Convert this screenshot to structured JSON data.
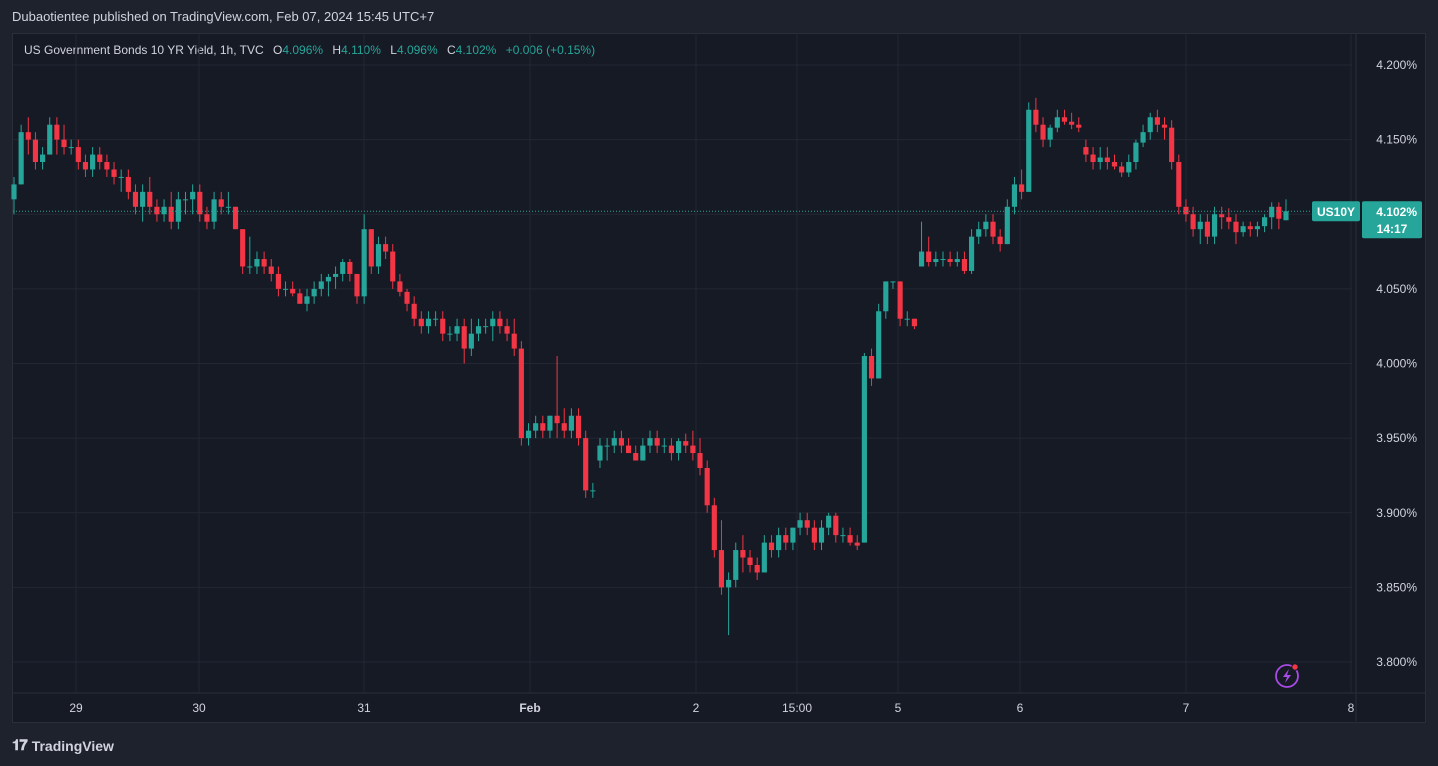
{
  "publisher_line": "Dubaotientee published on TradingView.com, Feb 07, 2024 15:45 UTC+7",
  "legend": {
    "symbol_line": "US Government Bonds 10 YR Yield, 1h, TVC",
    "o_label": "O",
    "o": "4.096%",
    "h_label": "H",
    "h": "4.110%",
    "l_label": "L",
    "l": "4.096%",
    "c_label": "C",
    "c": "4.102%",
    "change": "+0.006 (+0.15%)"
  },
  "price_badge": {
    "ticker": "US10Y",
    "price": "4.102%",
    "countdown": "14:17"
  },
  "footer": {
    "brand": "TradingView",
    "logo_icon": "tradingview-logo-icon"
  },
  "colors": {
    "up": "#26a69a",
    "down": "#f23645",
    "grid": "#232733",
    "text": "#d1d4dc",
    "accent": "#a94be6"
  },
  "chart_data": {
    "type": "candlestick",
    "ylim": [
      3.775,
      4.21
    ],
    "y_ticks": [
      4.2,
      4.15,
      4.1,
      4.05,
      4.0,
      3.95,
      3.9,
      3.85,
      3.8
    ],
    "y_tick_labels": [
      "4.200%",
      "4.150%",
      "4.100%",
      "4.050%",
      "4.000%",
      "3.950%",
      "3.900%",
      "3.850%",
      "3.800%"
    ],
    "x_tick_labels": [
      "29",
      "30",
      "31",
      "Feb",
      "2",
      "15:00",
      "5",
      "6",
      "7",
      "8"
    ],
    "current_price": 4.102,
    "ohlc": [
      [
        4.11,
        4.125,
        4.1,
        4.12
      ],
      [
        4.12,
        4.16,
        4.12,
        4.155
      ],
      [
        4.155,
        4.165,
        4.14,
        4.15
      ],
      [
        4.15,
        4.155,
        4.13,
        4.135
      ],
      [
        4.135,
        4.145,
        4.13,
        4.14
      ],
      [
        4.14,
        4.165,
        4.14,
        4.16
      ],
      [
        4.16,
        4.165,
        4.14,
        4.15
      ],
      [
        4.15,
        4.16,
        4.14,
        4.145
      ],
      [
        4.145,
        4.15,
        4.14,
        4.145
      ],
      [
        4.145,
        4.15,
        4.13,
        4.135
      ],
      [
        4.135,
        4.14,
        4.125,
        4.13
      ],
      [
        4.13,
        4.145,
        4.125,
        4.14
      ],
      [
        4.14,
        4.145,
        4.13,
        4.135
      ],
      [
        4.135,
        4.14,
        4.125,
        4.13
      ],
      [
        4.13,
        4.135,
        4.12,
        4.125
      ],
      [
        4.125,
        4.13,
        4.115,
        4.125
      ],
      [
        4.125,
        4.13,
        4.11,
        4.115
      ],
      [
        4.115,
        4.12,
        4.1,
        4.105
      ],
      [
        4.105,
        4.12,
        4.095,
        4.115
      ],
      [
        4.115,
        4.125,
        4.1,
        4.105
      ],
      [
        4.105,
        4.11,
        4.095,
        4.1
      ],
      [
        4.1,
        4.11,
        4.095,
        4.105
      ],
      [
        4.105,
        4.115,
        4.09,
        4.095
      ],
      [
        4.095,
        4.115,
        4.09,
        4.11
      ],
      [
        4.11,
        4.115,
        4.1,
        4.11
      ],
      [
        4.11,
        4.12,
        4.1,
        4.115
      ],
      [
        4.115,
        4.12,
        4.095,
        4.1
      ],
      [
        4.1,
        4.105,
        4.09,
        4.095
      ],
      [
        4.095,
        4.115,
        4.09,
        4.11
      ],
      [
        4.11,
        4.115,
        4.1,
        4.105
      ],
      [
        4.105,
        4.115,
        4.1,
        4.105
      ],
      [
        4.105,
        4.105,
        4.09,
        4.09
      ],
      [
        4.09,
        4.09,
        4.06,
        4.065
      ],
      [
        4.065,
        4.085,
        4.06,
        4.065
      ],
      [
        4.065,
        4.075,
        4.06,
        4.07
      ],
      [
        4.07,
        4.075,
        4.06,
        4.065
      ],
      [
        4.065,
        4.07,
        4.055,
        4.06
      ],
      [
        4.06,
        4.065,
        4.045,
        4.05
      ],
      [
        4.05,
        4.055,
        4.045,
        4.05
      ],
      [
        4.05,
        4.055,
        4.045,
        4.047
      ],
      [
        4.047,
        4.05,
        4.04,
        4.04
      ],
      [
        4.04,
        4.05,
        4.035,
        4.045
      ],
      [
        4.045,
        4.055,
        4.04,
        4.05
      ],
      [
        4.05,
        4.06,
        4.045,
        4.055
      ],
      [
        4.055,
        4.06,
        4.045,
        4.058
      ],
      [
        4.058,
        4.065,
        4.05,
        4.06
      ],
      [
        4.06,
        4.07,
        4.055,
        4.068
      ],
      [
        4.068,
        4.07,
        4.055,
        4.06
      ],
      [
        4.06,
        4.06,
        4.04,
        4.045
      ],
      [
        4.045,
        4.1,
        4.04,
        4.09
      ],
      [
        4.09,
        4.09,
        4.06,
        4.065
      ],
      [
        4.065,
        4.085,
        4.06,
        4.08
      ],
      [
        4.08,
        4.085,
        4.07,
        4.075
      ],
      [
        4.075,
        4.08,
        4.05,
        4.055
      ],
      [
        4.055,
        4.06,
        4.045,
        4.048
      ],
      [
        4.048,
        4.05,
        4.035,
        4.04
      ],
      [
        4.04,
        4.045,
        4.025,
        4.03
      ],
      [
        4.03,
        4.035,
        4.02,
        4.025
      ],
      [
        4.025,
        4.035,
        4.02,
        4.03
      ],
      [
        4.03,
        4.035,
        4.025,
        4.03
      ],
      [
        4.03,
        4.035,
        4.015,
        4.02
      ],
      [
        4.02,
        4.025,
        4.015,
        4.02
      ],
      [
        4.02,
        4.03,
        4.015,
        4.025
      ],
      [
        4.025,
        4.03,
        4.0,
        4.01
      ],
      [
        4.01,
        4.03,
        4.005,
        4.02
      ],
      [
        4.02,
        4.03,
        4.015,
        4.025
      ],
      [
        4.025,
        4.03,
        4.02,
        4.025
      ],
      [
        4.025,
        4.035,
        4.015,
        4.03
      ],
      [
        4.03,
        4.035,
        4.02,
        4.025
      ],
      [
        4.025,
        4.03,
        4.015,
        4.02
      ],
      [
        4.02,
        4.03,
        4.005,
        4.01
      ],
      [
        4.01,
        4.015,
        3.945,
        3.95
      ],
      [
        3.95,
        3.96,
        3.945,
        3.955
      ],
      [
        3.955,
        3.965,
        3.95,
        3.96
      ],
      [
        3.96,
        3.965,
        3.95,
        3.955
      ],
      [
        3.955,
        3.965,
        3.95,
        3.965
      ],
      [
        3.965,
        4.005,
        3.95,
        3.96
      ],
      [
        3.96,
        3.97,
        3.95,
        3.955
      ],
      [
        3.955,
        3.97,
        3.95,
        3.965
      ],
      [
        3.965,
        3.97,
        3.945,
        3.95
      ],
      [
        3.95,
        3.955,
        3.91,
        3.915
      ],
      [
        3.915,
        3.92,
        3.91,
        3.915
      ],
      [
        3.935,
        3.95,
        3.93,
        3.945
      ],
      [
        3.945,
        3.95,
        3.935,
        3.945
      ],
      [
        3.945,
        3.955,
        3.94,
        3.95
      ],
      [
        3.95,
        3.955,
        3.94,
        3.945
      ],
      [
        3.945,
        3.95,
        3.94,
        3.94
      ],
      [
        3.94,
        3.945,
        3.935,
        3.935
      ],
      [
        3.935,
        3.95,
        3.935,
        3.945
      ],
      [
        3.945,
        3.955,
        3.94,
        3.95
      ],
      [
        3.95,
        3.955,
        3.94,
        3.945
      ],
      [
        3.945,
        3.95,
        3.94,
        3.945
      ],
      [
        3.945,
        3.95,
        3.935,
        3.94
      ],
      [
        3.94,
        3.95,
        3.935,
        3.948
      ],
      [
        3.948,
        3.953,
        3.94,
        3.945
      ],
      [
        3.945,
        3.955,
        3.935,
        3.94
      ],
      [
        3.94,
        3.95,
        3.925,
        3.93
      ],
      [
        3.93,
        3.935,
        3.9,
        3.905
      ],
      [
        3.905,
        3.91,
        3.87,
        3.875
      ],
      [
        3.875,
        3.895,
        3.845,
        3.85
      ],
      [
        3.85,
        3.86,
        3.818,
        3.855
      ],
      [
        3.855,
        3.88,
        3.85,
        3.875
      ],
      [
        3.875,
        3.885,
        3.86,
        3.87
      ],
      [
        3.87,
        3.875,
        3.86,
        3.865
      ],
      [
        3.865,
        3.87,
        3.855,
        3.86
      ],
      [
        3.86,
        3.885,
        3.86,
        3.88
      ],
      [
        3.88,
        3.885,
        3.87,
        3.875
      ],
      [
        3.875,
        3.89,
        3.87,
        3.885
      ],
      [
        3.885,
        3.89,
        3.875,
        3.88
      ],
      [
        3.88,
        3.89,
        3.875,
        3.89
      ],
      [
        3.89,
        3.9,
        3.885,
        3.895
      ],
      [
        3.895,
        3.9,
        3.885,
        3.89
      ],
      [
        3.89,
        3.895,
        3.875,
        3.88
      ],
      [
        3.88,
        3.895,
        3.875,
        3.89
      ],
      [
        3.89,
        3.9,
        3.885,
        3.898
      ],
      [
        3.898,
        3.9,
        3.88,
        3.885
      ],
      [
        3.885,
        3.89,
        3.88,
        3.885
      ],
      [
        3.885,
        3.89,
        3.878,
        3.88
      ],
      [
        3.88,
        3.885,
        3.875,
        3.878
      ],
      [
        3.88,
        4.007,
        3.88,
        4.005
      ],
      [
        4.005,
        4.01,
        3.985,
        3.99
      ],
      [
        3.99,
        4.04,
        3.99,
        4.035
      ],
      [
        4.035,
        4.055,
        4.03,
        4.055
      ],
      [
        4.055,
        4.055,
        4.05,
        4.055
      ],
      [
        4.055,
        4.055,
        4.025,
        4.03
      ],
      [
        4.03,
        4.035,
        4.025,
        4.03
      ],
      [
        4.03,
        4.03,
        4.023,
        4.025
      ],
      [
        4.065,
        4.095,
        4.065,
        4.075
      ],
      [
        4.075,
        4.085,
        4.065,
        4.068
      ],
      [
        4.068,
        4.075,
        4.065,
        4.07
      ],
      [
        4.07,
        4.075,
        4.065,
        4.07
      ],
      [
        4.07,
        4.075,
        4.065,
        4.068
      ],
      [
        4.068,
        4.075,
        4.065,
        4.07
      ],
      [
        4.07,
        4.075,
        4.06,
        4.062
      ],
      [
        4.062,
        4.09,
        4.06,
        4.085
      ],
      [
        4.085,
        4.095,
        4.08,
        4.09
      ],
      [
        4.09,
        4.1,
        4.085,
        4.095
      ],
      [
        4.095,
        4.1,
        4.08,
        4.085
      ],
      [
        4.085,
        4.09,
        4.075,
        4.08
      ],
      [
        4.08,
        4.11,
        4.08,
        4.105
      ],
      [
        4.105,
        4.125,
        4.1,
        4.12
      ],
      [
        4.12,
        4.13,
        4.11,
        4.115
      ],
      [
        4.115,
        4.175,
        4.115,
        4.17
      ],
      [
        4.17,
        4.178,
        4.155,
        4.16
      ],
      [
        4.16,
        4.165,
        4.145,
        4.15
      ],
      [
        4.15,
        4.16,
        4.145,
        4.158
      ],
      [
        4.158,
        4.17,
        4.155,
        4.165
      ],
      [
        4.165,
        4.17,
        4.16,
        4.162
      ],
      [
        4.162,
        4.168,
        4.157,
        4.16
      ],
      [
        4.16,
        4.165,
        4.155,
        4.158
      ],
      [
        4.145,
        4.15,
        4.135,
        4.14
      ],
      [
        4.14,
        4.145,
        4.13,
        4.135
      ],
      [
        4.135,
        4.145,
        4.13,
        4.138
      ],
      [
        4.138,
        4.145,
        4.13,
        4.135
      ],
      [
        4.135,
        4.14,
        4.13,
        4.132
      ],
      [
        4.132,
        4.135,
        4.125,
        4.128
      ],
      [
        4.128,
        4.14,
        4.125,
        4.135
      ],
      [
        4.135,
        4.15,
        4.13,
        4.148
      ],
      [
        4.148,
        4.16,
        4.145,
        4.155
      ],
      [
        4.155,
        4.168,
        4.15,
        4.165
      ],
      [
        4.165,
        4.17,
        4.155,
        4.16
      ],
      [
        4.16,
        4.165,
        4.15,
        4.158
      ],
      [
        4.158,
        4.163,
        4.13,
        4.135
      ],
      [
        4.135,
        4.14,
        4.1,
        4.105
      ],
      [
        4.105,
        4.11,
        4.095,
        4.1
      ],
      [
        4.1,
        4.105,
        4.085,
        4.09
      ],
      [
        4.09,
        4.1,
        4.08,
        4.095
      ],
      [
        4.095,
        4.1,
        4.08,
        4.085
      ],
      [
        4.085,
        4.105,
        4.08,
        4.1
      ],
      [
        4.1,
        4.105,
        4.09,
        4.098
      ],
      [
        4.098,
        4.104,
        4.09,
        4.095
      ],
      [
        4.095,
        4.1,
        4.08,
        4.088
      ],
      [
        4.088,
        4.095,
        4.085,
        4.092
      ],
      [
        4.092,
        4.095,
        4.085,
        4.09
      ],
      [
        4.09,
        4.095,
        4.085,
        4.092
      ],
      [
        4.092,
        4.1,
        4.088,
        4.098
      ],
      [
        4.098,
        4.108,
        4.09,
        4.105
      ],
      [
        4.105,
        4.108,
        4.09,
        4.097
      ],
      [
        4.096,
        4.11,
        4.096,
        4.102
      ]
    ]
  }
}
